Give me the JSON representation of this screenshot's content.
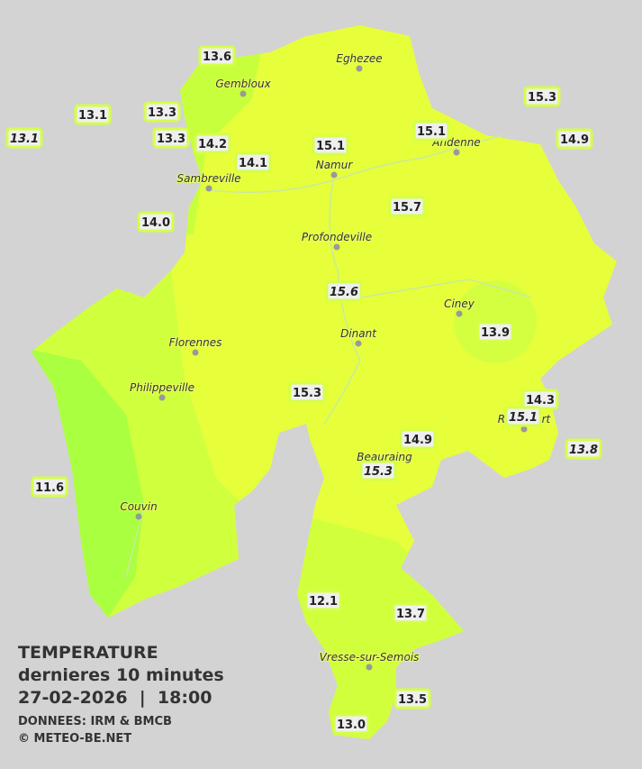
{
  "title": {
    "heading": "TEMPERATURE",
    "subtitle": "dernieres 10 minutes",
    "datetime": "27-02-2026  |  18:00",
    "source": "DONNEES: IRM & BMCB",
    "credit": "© METEO-BE.NET"
  },
  "cities": [
    "Eghezee",
    "Gembloux",
    "Andenne",
    "Namur",
    "Sambreville",
    "Profondeville",
    "Ciney",
    "Dinant",
    "Florennes",
    "Philippeville",
    "Couvin",
    "Beauraing",
    "Rochefort",
    "Vresse-sur-Semois"
  ],
  "stations": [
    {
      "label": "13.6"
    },
    {
      "label": "13.1"
    },
    {
      "label": "13.3"
    },
    {
      "label": "13.1",
      "italic": true
    },
    {
      "label": "13.3"
    },
    {
      "label": "14.2"
    },
    {
      "label": "14.1"
    },
    {
      "label": "15.1"
    },
    {
      "label": "15.1"
    },
    {
      "label": "15.3"
    },
    {
      "label": "14.9"
    },
    {
      "label": "14.0"
    },
    {
      "label": "15.7"
    },
    {
      "label": "15.6",
      "italic": true
    },
    {
      "label": "13.9"
    },
    {
      "label": "15.3"
    },
    {
      "label": "14.3"
    },
    {
      "label": "15.1",
      "italic": true
    },
    {
      "label": "14.9"
    },
    {
      "label": "13.8",
      "italic": true
    },
    {
      "label": "15.3",
      "italic": true
    },
    {
      "label": "11.6"
    },
    {
      "label": "12.1"
    },
    {
      "label": "13.7"
    },
    {
      "label": "13.5"
    },
    {
      "label": "13.0"
    }
  ]
}
